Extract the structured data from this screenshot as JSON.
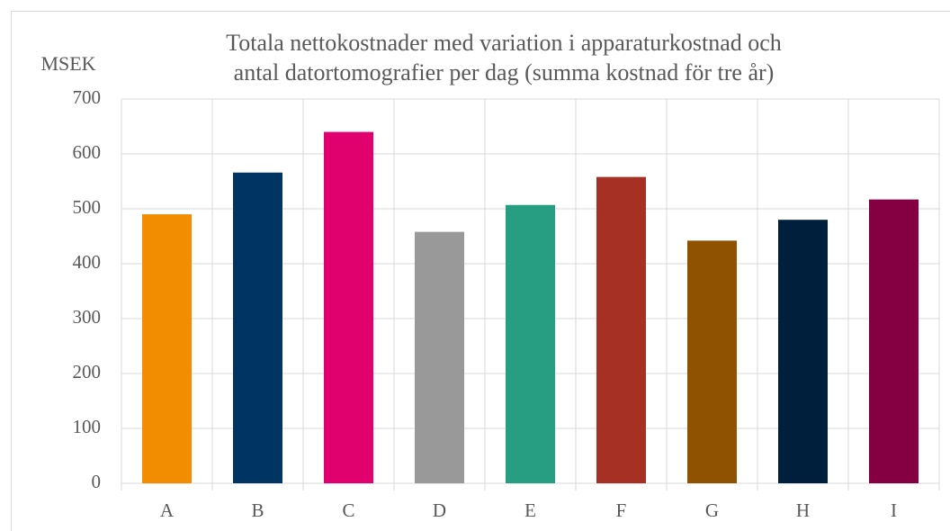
{
  "chart_data": {
    "type": "bar",
    "title": [
      "Totala nettokostnader med variation i apparaturkostnad och",
      "antal datortomografier per dag (summa kostnad för tre år)"
    ],
    "y_label": "MSEK",
    "categories": [
      "A",
      "B",
      "C",
      "D",
      "E",
      "F",
      "G",
      "H",
      "I"
    ],
    "values": [
      490,
      566,
      640,
      458,
      507,
      558,
      442,
      480,
      517
    ],
    "colors": [
      "#f28c00",
      "#003463",
      "#e0006e",
      "#999999",
      "#279e82",
      "#a53023",
      "#8f5200",
      "#001f3d",
      "#850042"
    ],
    "ylim": [
      0,
      700
    ],
    "yticks": [
      0,
      100,
      200,
      300,
      400,
      500,
      600,
      700
    ],
    "grid": true
  }
}
